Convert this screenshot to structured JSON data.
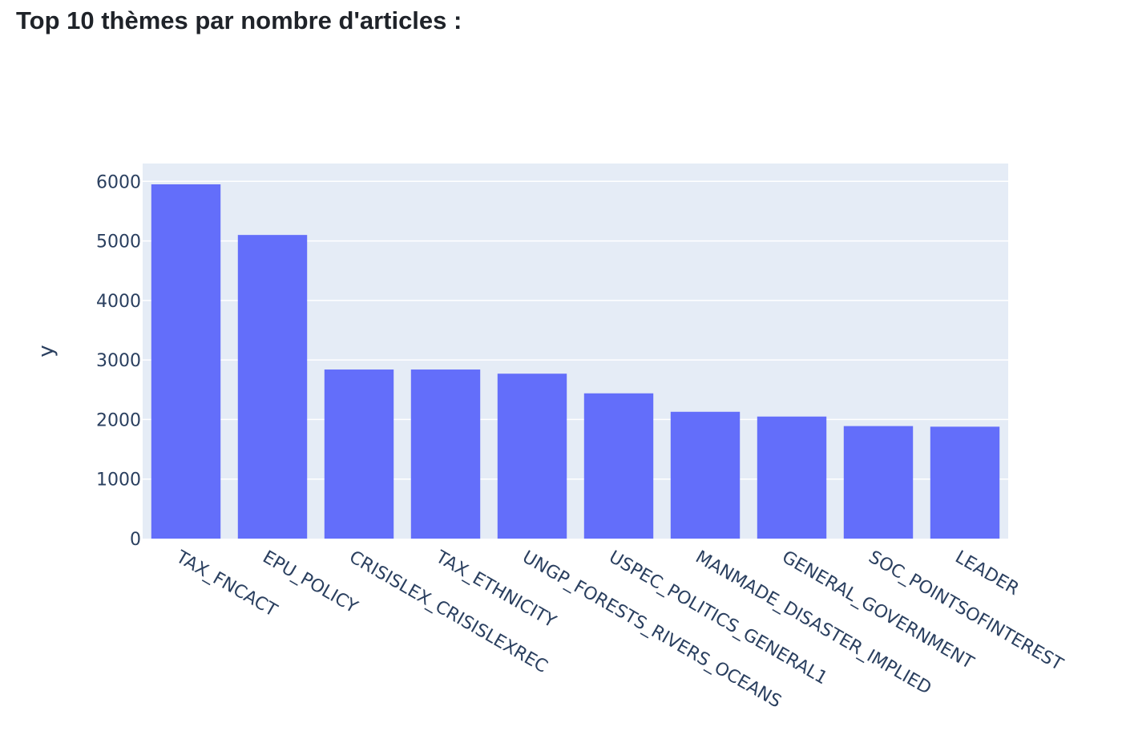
{
  "page": {
    "heading": "Top 10 thèmes par nombre d'articles :"
  },
  "colors": {
    "bar": "#636efa",
    "plot_background": "#e5ecf6",
    "grid": "#ffffff",
    "text": "#2a3f5f"
  },
  "chart_data": {
    "type": "bar",
    "title": "",
    "xlabel": "",
    "ylabel": "y",
    "ylim": [
      0,
      6300
    ],
    "yticks": [
      0,
      1000,
      2000,
      3000,
      4000,
      5000,
      6000
    ],
    "grid": true,
    "categories": [
      "TAX_FNCACT",
      "EPU_POLICY",
      "CRISISLEX_CRISISLEXREC",
      "TAX_ETHNICITY",
      "UNGP_FORESTS_RIVERS_OCEANS",
      "USPEC_POLITICS_GENERAL1",
      "MANMADE_DISASTER_IMPLIED",
      "GENERAL_GOVERNMENT",
      "SOC_POINTSOFINTEREST",
      "LEADER"
    ],
    "values": [
      5950,
      5100,
      2840,
      2840,
      2770,
      2440,
      2130,
      2050,
      1890,
      1880
    ]
  }
}
